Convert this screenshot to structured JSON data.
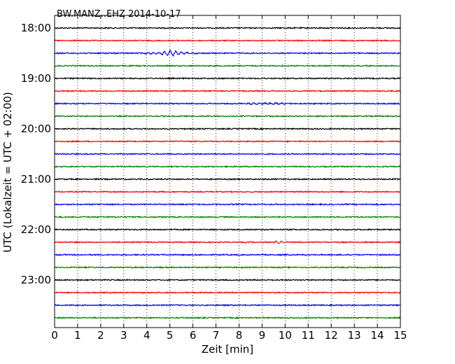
{
  "chart_data": {
    "type": "line",
    "title": "BW.MANZ..EHZ 2014-10-17",
    "xlabel": "Zeit  [min]",
    "ylabel": "UTC (Lokalzeit = UTC + 02:00)",
    "xlim": [
      0,
      15
    ],
    "x_ticks": [
      "0",
      "1",
      "2",
      "3",
      "4",
      "5",
      "6",
      "7",
      "8",
      "9",
      "10",
      "11",
      "12",
      "13",
      "14",
      "15"
    ],
    "y_tick_labels": [
      "18:00",
      "19:00",
      "20:00",
      "21:00",
      "22:00",
      "23:00"
    ],
    "grid": "vertical dotted",
    "trace_start_times": [
      "18:00",
      "18:15",
      "18:30",
      "18:45",
      "19:00",
      "19:15",
      "19:30",
      "19:45",
      "20:00",
      "20:15",
      "20:30",
      "20:45",
      "21:00",
      "21:15",
      "21:30",
      "21:45",
      "22:00",
      "22:15",
      "22:30",
      "22:45",
      "23:00",
      "23:15",
      "23:30",
      "23:45"
    ],
    "trace_colors": [
      "#000000",
      "#ff0000",
      "#0000ff",
      "#008000"
    ],
    "events": [
      {
        "trace_start": "18:30",
        "from_min": 3.8,
        "to_min": 6.2,
        "amplitude": "large"
      },
      {
        "trace_start": "19:30",
        "from_min": 8.0,
        "to_min": 10.2,
        "amplitude": "small"
      },
      {
        "trace_start": "22:15",
        "from_min": 9.4,
        "to_min": 10.0,
        "amplitude": "small"
      }
    ]
  }
}
